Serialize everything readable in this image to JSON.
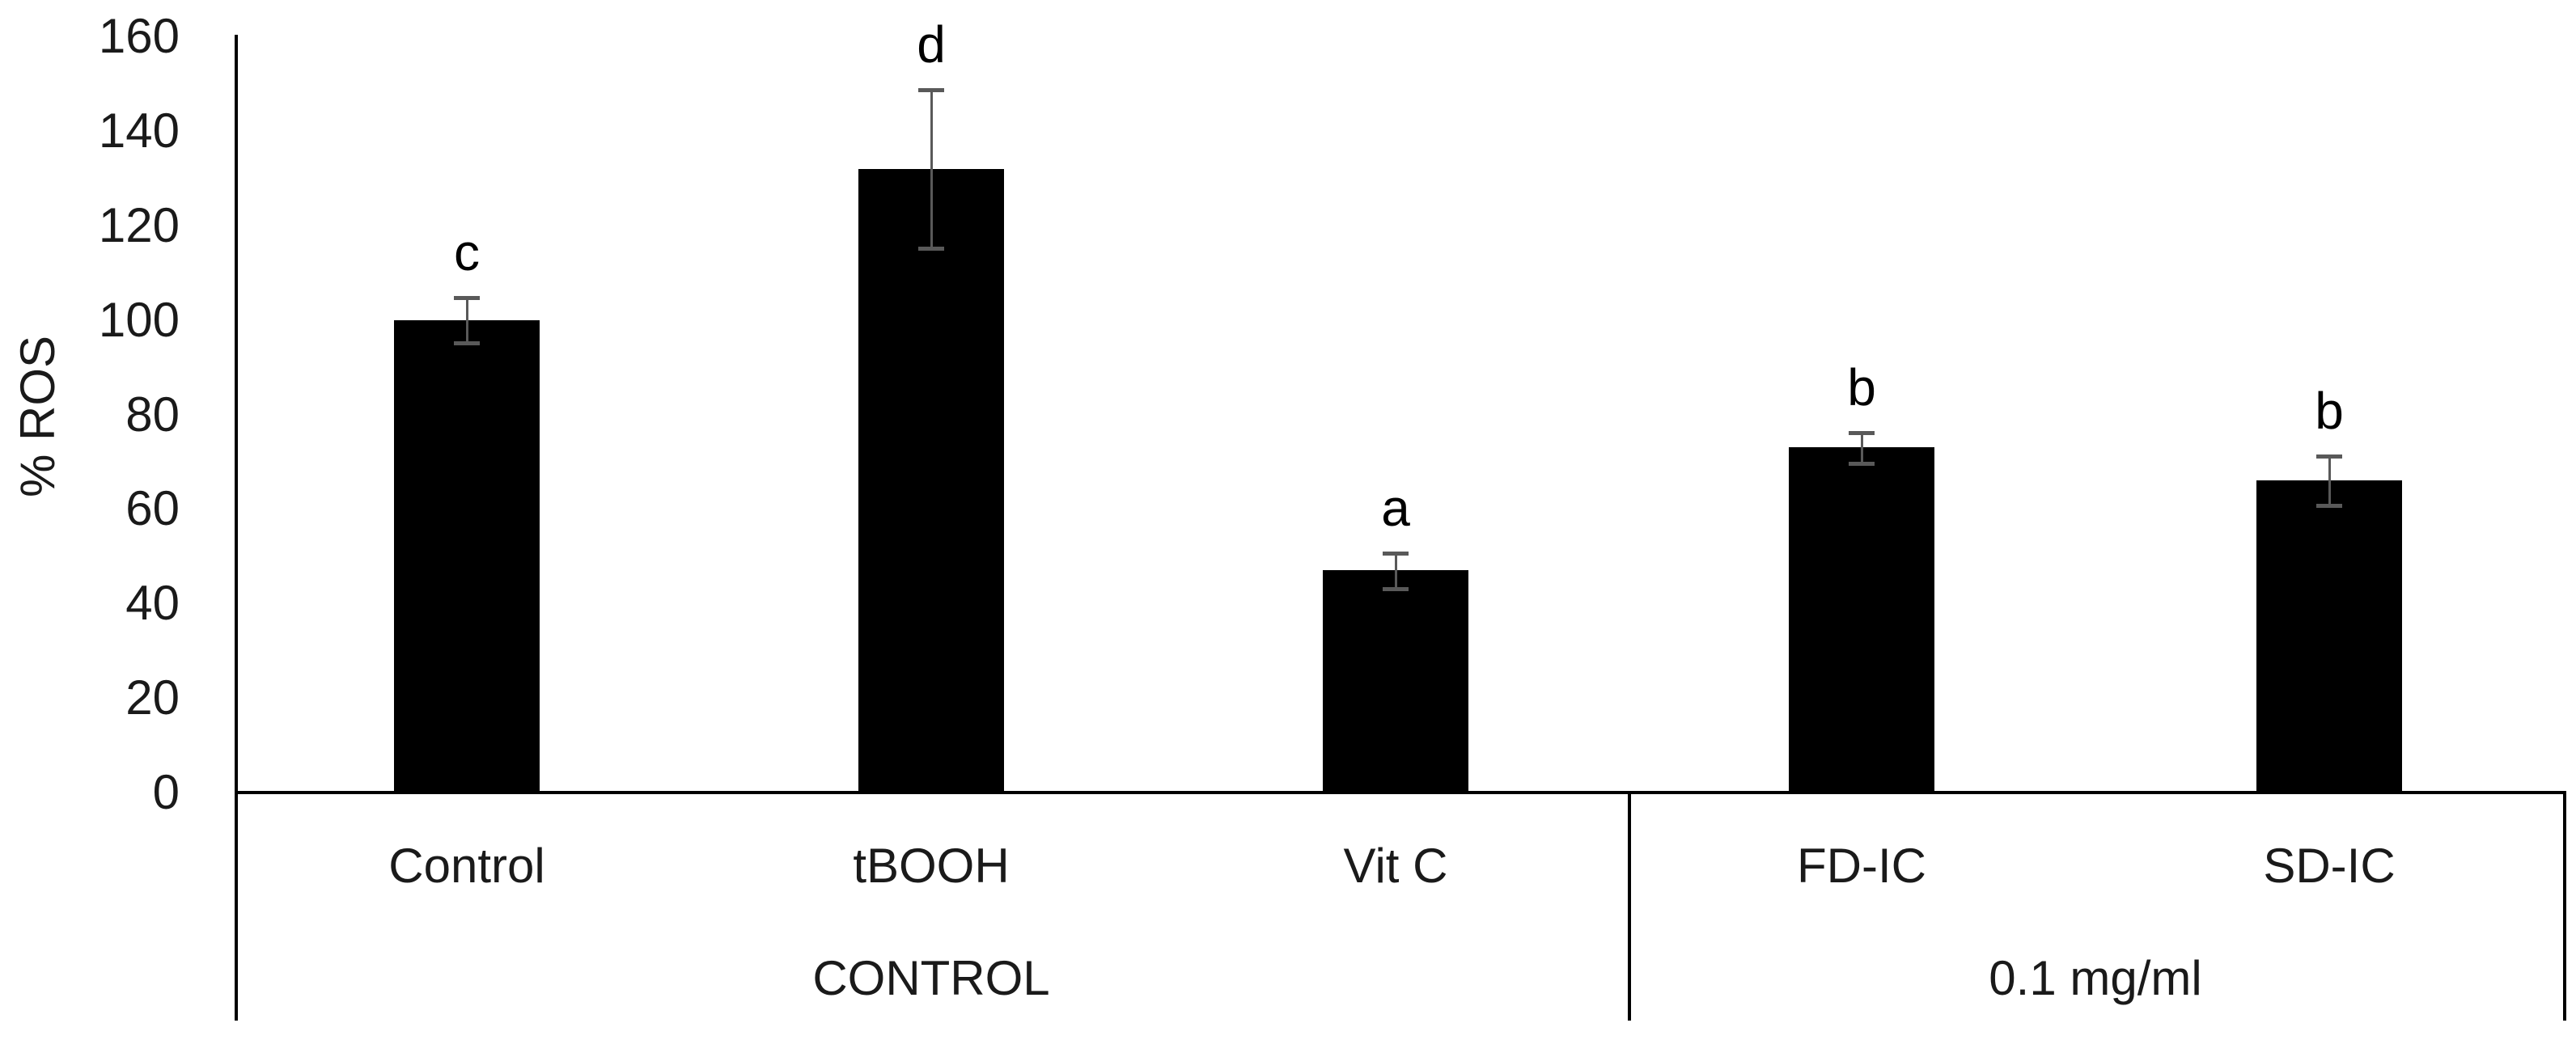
{
  "chart_data": {
    "type": "bar",
    "title": "",
    "ylabel": "% ROS",
    "xlabel": "",
    "ylim": [
      0,
      160
    ],
    "yticks": [
      0,
      20,
      40,
      60,
      80,
      100,
      120,
      140,
      160
    ],
    "grid": false,
    "legend_position": "none",
    "bar_color": "#000000",
    "error_bar_color": "#595959",
    "axis_color": "#000000",
    "groups": [
      {
        "label": "CONTROL",
        "bars": [
          {
            "category": "Control",
            "value": 100,
            "error": 5,
            "letter": "c"
          },
          {
            "category": "tBOOH",
            "value": 132,
            "error": 17,
            "letter": "d"
          },
          {
            "category": "Vit C",
            "value": 47,
            "error": 4,
            "letter": "a"
          }
        ]
      },
      {
        "label": "0.1 mg/ml",
        "bars": [
          {
            "category": "FD-IC",
            "value": 73,
            "error": 3.5,
            "letter": "b"
          },
          {
            "category": "SD-IC",
            "value": 66,
            "error": 5.5,
            "letter": "b"
          }
        ]
      }
    ]
  }
}
